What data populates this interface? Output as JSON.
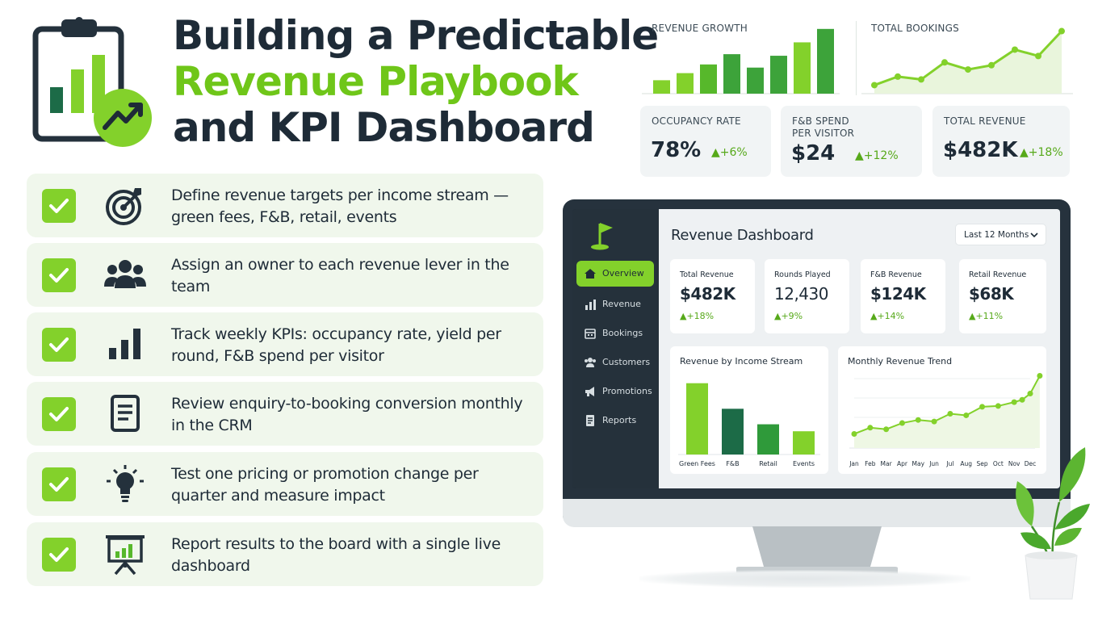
{
  "title": {
    "line1": "Building a Predictable",
    "line2": "Revenue Playbook",
    "line3": "and KPI Dashboard"
  },
  "colors": {
    "accent_green": "#83d12b",
    "brand_green_text": "#6fc619",
    "dark_navy": "#1e2b37",
    "dark_green": "#1c6b47",
    "row_background": "#f0f7ec"
  },
  "checklist": [
    {
      "icon": "target-icon",
      "text": "Define revenue targets per income stream — green fees, F&B, retail, events"
    },
    {
      "icon": "team-icon",
      "text": "Assign an owner to each revenue lever in the team"
    },
    {
      "icon": "bar-chart-icon",
      "text": "Track weekly KPIs: occupancy rate, yield per round, F&B spend per visitor"
    },
    {
      "icon": "document-icon",
      "text": "Review enquiry-to-booking conversion monthly in the CRM"
    },
    {
      "icon": "lightbulb-icon",
      "text": "Test one pricing or promotion change per quarter and measure impact"
    },
    {
      "icon": "presentation-icon",
      "text": "Report results to the board with a single live dashboard"
    }
  ],
  "top_charts": {
    "revenue_growth": {
      "label": "REVENUE GROWTH"
    },
    "total_bookings": {
      "label": "TOTAL BOOKINGS"
    }
  },
  "kpis": [
    {
      "label_line1": "OCCUPANCY RATE",
      "label_line2": "",
      "value": "78%",
      "delta": "+6%"
    },
    {
      "label_line1": "F&B SPEND",
      "label_line2": "PER VISITOR",
      "value": "$24",
      "delta": "+12%"
    },
    {
      "label_line1": "TOTAL REVENUE",
      "label_line2": "",
      "value": "$482K",
      "delta": "+18%"
    }
  ],
  "dashboard": {
    "title": "Revenue Dashboard",
    "range": "Last 12 Months",
    "nav": [
      {
        "label": "Overview",
        "icon": "home-icon",
        "active": true
      },
      {
        "label": "Revenue",
        "icon": "bar-chart-icon",
        "active": false
      },
      {
        "label": "Bookings",
        "icon": "calendar-icon",
        "active": false
      },
      {
        "label": "Customers",
        "icon": "users-icon",
        "active": false
      },
      {
        "label": "Promotions",
        "icon": "megaphone-icon",
        "active": false
      },
      {
        "label": "Reports",
        "icon": "report-icon",
        "active": false
      }
    ],
    "cards": [
      {
        "label": "Total Revenue",
        "value": "$482K",
        "delta": "+18%"
      },
      {
        "label": "Rounds Played",
        "value": "12,430",
        "delta": "+9%"
      },
      {
        "label": "F&B Revenue",
        "value": "$124K",
        "delta": "+14%"
      },
      {
        "label": "Retail Revenue",
        "value": "$68K",
        "delta": "+11%"
      }
    ],
    "income_panel_title": "Revenue by Income Stream",
    "trend_panel_title": "Monthly Revenue Trend"
  },
  "chart_data": [
    {
      "type": "bar",
      "title": "REVENUE GROWTH",
      "categories": [
        "",
        "",
        "",
        "",
        "",
        "",
        "",
        ""
      ],
      "values": [
        17,
        26,
        37,
        50,
        33,
        48,
        65,
        82
      ],
      "colors": [
        "#83d12b",
        "#83d12b",
        "#57b82b",
        "#3da33a",
        "#3da33a",
        "#3da33a",
        "#83d12b",
        "#3da33a"
      ],
      "ylim": [
        0,
        90
      ]
    },
    {
      "type": "area",
      "title": "TOTAL BOOKINGS",
      "x": [
        1,
        2,
        3,
        4,
        5,
        6,
        7,
        8,
        9
      ],
      "values": [
        12,
        24,
        20,
        44,
        34,
        40,
        62,
        53,
        88
      ],
      "ylim": [
        0,
        100
      ]
    },
    {
      "type": "bar",
      "title": "Revenue by Income Stream",
      "categories": [
        "Green Fees",
        "F&B",
        "Retail",
        "Events"
      ],
      "values": [
        92,
        59,
        39,
        30
      ],
      "colors": [
        "#83d12b",
        "#1c6b47",
        "#2f9a3a",
        "#83d12b"
      ],
      "ylim": [
        0,
        100
      ]
    },
    {
      "type": "area",
      "title": "Monthly Revenue Trend",
      "categories": [
        "Jan",
        "Feb",
        "Mar",
        "Apr",
        "May",
        "Jun",
        "Jul",
        "Aug",
        "Sep",
        "Oct",
        "Nov",
        "Dec"
      ],
      "values": [
        12,
        20,
        18,
        26,
        30,
        28,
        38,
        36,
        47,
        48,
        53,
        56,
        64,
        87
      ],
      "x": [
        1,
        2,
        3,
        4,
        5,
        6,
        7,
        8,
        9,
        10,
        11,
        11.5,
        12,
        12.6
      ],
      "ylim": [
        0,
        100
      ]
    }
  ]
}
